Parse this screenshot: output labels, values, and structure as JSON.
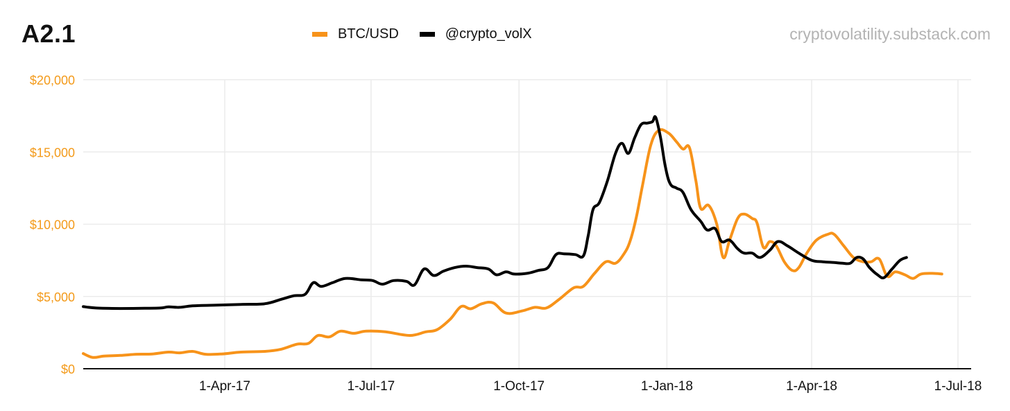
{
  "header": {
    "title": "A2.1",
    "source": "cryptovolatility.substack.com"
  },
  "legend": [
    {
      "label": "BTC/USD",
      "color": "#f7931a"
    },
    {
      "label": "@crypto_volX",
      "color": "#000000"
    }
  ],
  "chart_data": {
    "type": "line",
    "title": "A2.1",
    "xlabel": "",
    "ylabel": "",
    "ylim": [
      0,
      20000
    ],
    "grid": true,
    "legend_position": "top",
    "y_ticks": [
      "$0",
      "$5,000",
      "$10,000",
      "$15,000",
      "$20,000"
    ],
    "y_tick_values": [
      0,
      5000,
      10000,
      15000,
      20000
    ],
    "x_ticks": [
      "1-Apr-17",
      "1-Jul-17",
      "1-Oct-17",
      "1-Jan-18",
      "1-Apr-18",
      "1-Jul-18"
    ],
    "x_tick_days": [
      90,
      181,
      273,
      365,
      455,
      546
    ],
    "x_unit": "days since 1-Jan-17",
    "x_range_days": [
      2,
      555
    ],
    "series": [
      {
        "name": "BTC/USD",
        "color": "#f7931a",
        "points": [
          [
            2,
            1050
          ],
          [
            8,
            780
          ],
          [
            15,
            880
          ],
          [
            25,
            920
          ],
          [
            35,
            1000
          ],
          [
            45,
            1020
          ],
          [
            55,
            1150
          ],
          [
            62,
            1100
          ],
          [
            70,
            1200
          ],
          [
            78,
            1000
          ],
          [
            88,
            1020
          ],
          [
            100,
            1150
          ],
          [
            115,
            1200
          ],
          [
            125,
            1350
          ],
          [
            135,
            1700
          ],
          [
            142,
            1750
          ],
          [
            148,
            2300
          ],
          [
            155,
            2200
          ],
          [
            162,
            2600
          ],
          [
            170,
            2450
          ],
          [
            178,
            2600
          ],
          [
            190,
            2550
          ],
          [
            205,
            2300
          ],
          [
            215,
            2550
          ],
          [
            222,
            2700
          ],
          [
            230,
            3400
          ],
          [
            237,
            4300
          ],
          [
            243,
            4150
          ],
          [
            250,
            4500
          ],
          [
            257,
            4550
          ],
          [
            265,
            3850
          ],
          [
            275,
            4000
          ],
          [
            283,
            4250
          ],
          [
            290,
            4200
          ],
          [
            298,
            4800
          ],
          [
            307,
            5600
          ],
          [
            313,
            5700
          ],
          [
            320,
            6600
          ],
          [
            327,
            7400
          ],
          [
            333,
            7300
          ],
          [
            338,
            7900
          ],
          [
            342,
            8800
          ],
          [
            346,
            10500
          ],
          [
            350,
            12800
          ],
          [
            355,
            15500
          ],
          [
            360,
            16500
          ],
          [
            366,
            16300
          ],
          [
            371,
            15700
          ],
          [
            375,
            15200
          ],
          [
            379,
            15300
          ],
          [
            383,
            13000
          ],
          [
            386,
            11100
          ],
          [
            391,
            11300
          ],
          [
            396,
            10000
          ],
          [
            400,
            7700
          ],
          [
            404,
            8900
          ],
          [
            409,
            10400
          ],
          [
            413,
            10700
          ],
          [
            418,
            10400
          ],
          [
            421,
            10100
          ],
          [
            425,
            8400
          ],
          [
            429,
            8800
          ],
          [
            433,
            8500
          ],
          [
            438,
            7400
          ],
          [
            443,
            6800
          ],
          [
            447,
            7000
          ],
          [
            452,
            8000
          ],
          [
            458,
            8900
          ],
          [
            465,
            9300
          ],
          [
            469,
            9300
          ],
          [
            475,
            8500
          ],
          [
            481,
            7700
          ],
          [
            487,
            7400
          ],
          [
            492,
            7400
          ],
          [
            497,
            7600
          ],
          [
            502,
            6400
          ],
          [
            507,
            6700
          ],
          [
            513,
            6500
          ],
          [
            518,
            6250
          ],
          [
            523,
            6550
          ],
          [
            530,
            6600
          ],
          [
            536,
            6550
          ]
        ]
      },
      {
        "name": "@crypto_volX",
        "color": "#000000",
        "points": [
          [
            2,
            4300
          ],
          [
            10,
            4200
          ],
          [
            25,
            4170
          ],
          [
            40,
            4180
          ],
          [
            50,
            4200
          ],
          [
            55,
            4280
          ],
          [
            62,
            4250
          ],
          [
            70,
            4350
          ],
          [
            85,
            4400
          ],
          [
            100,
            4450
          ],
          [
            115,
            4500
          ],
          [
            125,
            4800
          ],
          [
            133,
            5050
          ],
          [
            140,
            5150
          ],
          [
            145,
            5950
          ],
          [
            150,
            5700
          ],
          [
            157,
            5950
          ],
          [
            165,
            6250
          ],
          [
            175,
            6150
          ],
          [
            182,
            6100
          ],
          [
            188,
            5850
          ],
          [
            195,
            6100
          ],
          [
            203,
            6050
          ],
          [
            208,
            5800
          ],
          [
            214,
            6900
          ],
          [
            220,
            6450
          ],
          [
            226,
            6750
          ],
          [
            233,
            7000
          ],
          [
            240,
            7100
          ],
          [
            247,
            7000
          ],
          [
            254,
            6900
          ],
          [
            259,
            6500
          ],
          [
            265,
            6700
          ],
          [
            270,
            6550
          ],
          [
            278,
            6600
          ],
          [
            285,
            6800
          ],
          [
            291,
            7000
          ],
          [
            296,
            7900
          ],
          [
            301,
            7950
          ],
          [
            308,
            7900
          ],
          [
            313,
            7800
          ],
          [
            316,
            9200
          ],
          [
            319,
            11000
          ],
          [
            323,
            11500
          ],
          [
            328,
            13000
          ],
          [
            333,
            14900
          ],
          [
            337,
            15600
          ],
          [
            341,
            14900
          ],
          [
            345,
            16000
          ],
          [
            349,
            16900
          ],
          [
            353,
            17000
          ],
          [
            356,
            17100
          ],
          [
            358,
            17400
          ],
          [
            361,
            16000
          ],
          [
            364,
            14000
          ],
          [
            367,
            12800
          ],
          [
            371,
            12500
          ],
          [
            375,
            12200
          ],
          [
            380,
            11000
          ],
          [
            386,
            10200
          ],
          [
            390,
            9600
          ],
          [
            395,
            9700
          ],
          [
            399,
            8800
          ],
          [
            404,
            8900
          ],
          [
            409,
            8300
          ],
          [
            413,
            8000
          ],
          [
            418,
            8000
          ],
          [
            423,
            7700
          ],
          [
            429,
            8200
          ],
          [
            434,
            8800
          ],
          [
            440,
            8500
          ],
          [
            447,
            8000
          ],
          [
            455,
            7500
          ],
          [
            462,
            7400
          ],
          [
            469,
            7350
          ],
          [
            474,
            7300
          ],
          [
            479,
            7300
          ],
          [
            483,
            7700
          ],
          [
            487,
            7600
          ],
          [
            491,
            7000
          ],
          [
            496,
            6500
          ],
          [
            500,
            6300
          ],
          [
            505,
            6900
          ],
          [
            510,
            7500
          ],
          [
            514,
            7700
          ]
        ]
      }
    ]
  }
}
